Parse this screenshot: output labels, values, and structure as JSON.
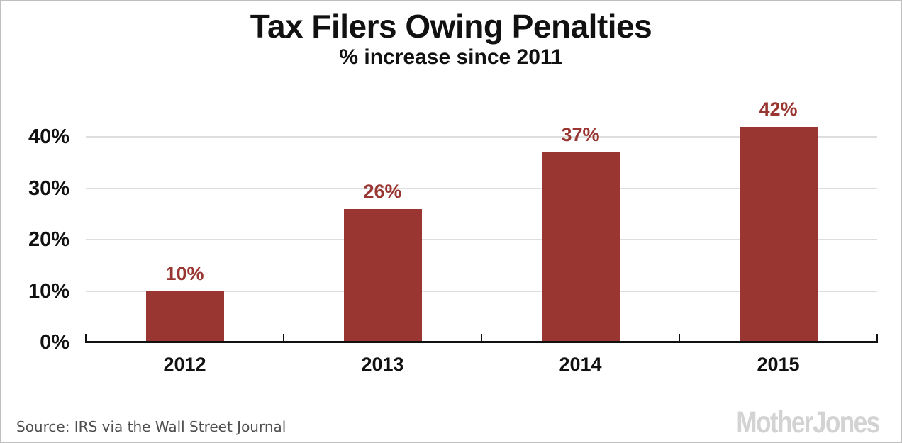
{
  "page": {
    "title": "Tax Filers Owing Penalties",
    "subtitle": "% increase since 2011",
    "source": "Source: IRS via the Wall Street Journal",
    "logo": "MotherJones"
  },
  "colors": {
    "bar": "#9a3632",
    "bar_label": "#9a3632",
    "axis": "#111111",
    "grid": "#dedede",
    "text": "#111111",
    "source_text": "#4f4f4f",
    "logo_gray": "#d3d3d3",
    "border": "#bfbfbf",
    "background": "#ffffff"
  },
  "chart_data": {
    "type": "bar",
    "title": "Tax Filers Owing Penalties",
    "subtitle": "% increase since 2011",
    "categories": [
      "2012",
      "2013",
      "2014",
      "2015"
    ],
    "values": [
      10,
      26,
      37,
      42
    ],
    "bar_labels": [
      "10%",
      "26%",
      "37%",
      "42%"
    ],
    "xlabel": "",
    "ylabel": "",
    "y_ticks": [
      0,
      10,
      20,
      30,
      40
    ],
    "y_tick_labels": [
      "0%",
      "10%",
      "20%",
      "30%",
      "40%"
    ],
    "ylim": [
      0,
      46
    ],
    "grid": "horizontal",
    "legend": "none"
  }
}
